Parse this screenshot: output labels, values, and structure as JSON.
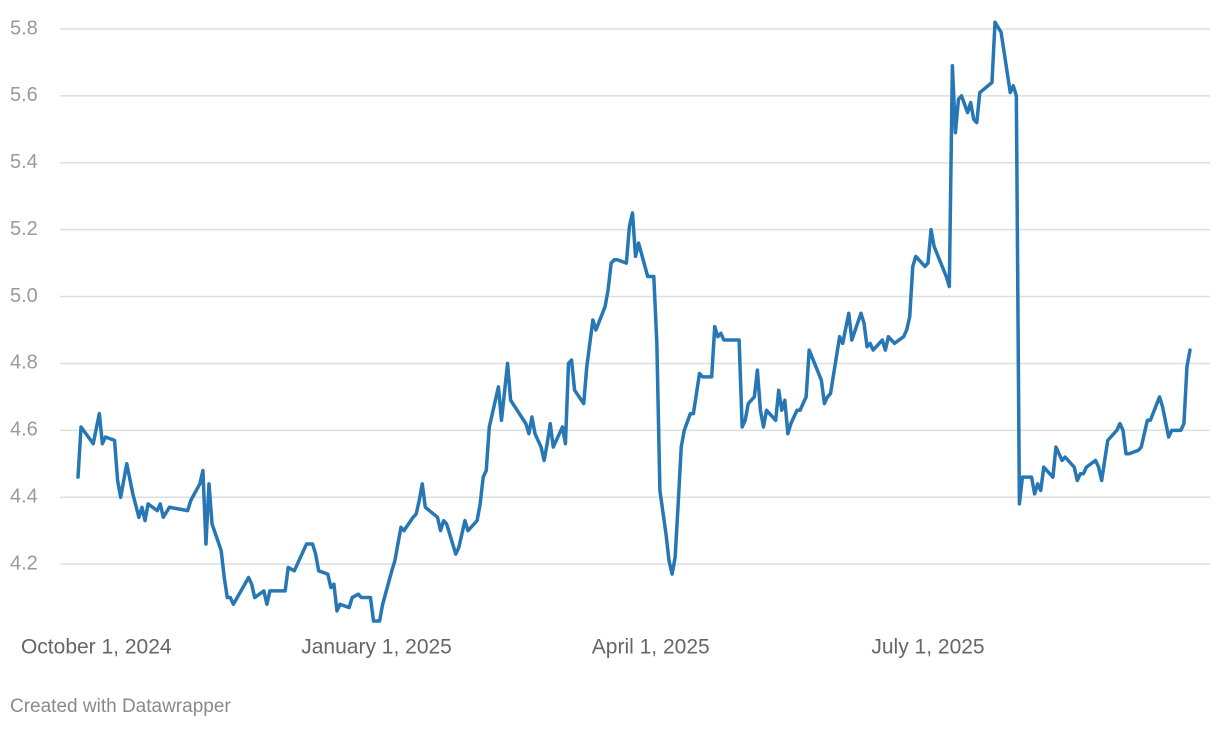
{
  "chart_data": {
    "type": "line",
    "color": "#2677b4",
    "grid": true,
    "footer": "Created with Datawrapper",
    "xlim": [
      "2024-09-25",
      "2025-09-25"
    ],
    "xticks": [
      {
        "value": "2024-10-01",
        "label": "October 1, 2024"
      },
      {
        "value": "2025-01-01",
        "label": "January 1, 2025"
      },
      {
        "value": "2025-04-01",
        "label": "April 1, 2025"
      },
      {
        "value": "2025-07-01",
        "label": "July 1, 2025"
      }
    ],
    "ylim": [
      4,
      5.8
    ],
    "yticks": [
      4.2,
      4.4,
      4.6,
      4.8,
      {
        "value": 5,
        "label": "5.0"
      },
      5.2,
      5.4,
      5.6,
      5.8
    ],
    "x": [
      "2024-09-25",
      "2024-09-26",
      "2024-09-30",
      "2024-10-02",
      "2024-10-03",
      "2024-10-04",
      "2024-10-07",
      "2024-10-08",
      "2024-10-09",
      "2024-10-11",
      "2024-10-13",
      "2024-10-15",
      "2024-10-16",
      "2024-10-17",
      "2024-10-18",
      "2024-10-21",
      "2024-10-22",
      "2024-10-23",
      "2024-10-25",
      "2024-10-31",
      "2024-11-01",
      "2024-11-04",
      "2024-11-05",
      "2024-11-06",
      "2024-11-07",
      "2024-11-08",
      "2024-11-11",
      "2024-11-12",
      "2024-11-13",
      "2024-11-14",
      "2024-11-15",
      "2024-11-20",
      "2024-11-21",
      "2024-11-22",
      "2024-11-25",
      "2024-11-26",
      "2024-11-27",
      "2024-11-29",
      "2024-12-02",
      "2024-12-03",
      "2024-12-05",
      "2024-12-09",
      "2024-12-11",
      "2024-12-12",
      "2024-12-13",
      "2024-12-16",
      "2024-12-17",
      "2024-12-18",
      "2024-12-19",
      "2024-12-20",
      "2024-12-23",
      "2024-12-24",
      "2024-12-26",
      "2024-12-27",
      "2024-12-30",
      "2024-12-31",
      "2025-01-02",
      "2025-01-03",
      "2025-01-06",
      "2025-01-07",
      "2025-01-09",
      "2025-01-10",
      "2025-01-13",
      "2025-01-14",
      "2025-01-15",
      "2025-01-16",
      "2025-01-17",
      "2025-01-21",
      "2025-01-22",
      "2025-01-23",
      "2025-01-24",
      "2025-01-27",
      "2025-01-28",
      "2025-01-30",
      "2025-01-31",
      "2025-02-03",
      "2025-02-04",
      "2025-02-05",
      "2025-02-06",
      "2025-02-07",
      "2025-02-10",
      "2025-02-11",
      "2025-02-13",
      "2025-02-14",
      "2025-02-19",
      "2025-02-20",
      "2025-02-21",
      "2025-02-22",
      "2025-02-24",
      "2025-02-25",
      "2025-02-26",
      "2025-02-27",
      "2025-02-28",
      "2025-03-03",
      "2025-03-04",
      "2025-03-05",
      "2025-03-06",
      "2025-03-07",
      "2025-03-10",
      "2025-03-11",
      "2025-03-13",
      "2025-03-14",
      "2025-03-17",
      "2025-03-18",
      "2025-03-19",
      "2025-03-20",
      "2025-03-21",
      "2025-03-24",
      "2025-03-25",
      "2025-03-26",
      "2025-03-27",
      "2025-03-28",
      "2025-03-31",
      "2025-04-01",
      "2025-04-02",
      "2025-04-03",
      "2025-04-04",
      "2025-04-06",
      "2025-04-07",
      "2025-04-08",
      "2025-04-09",
      "2025-04-10",
      "2025-04-11",
      "2025-04-12",
      "2025-04-14",
      "2025-04-15",
      "2025-04-17",
      "2025-04-18",
      "2025-04-21",
      "2025-04-22",
      "2025-04-23",
      "2025-04-24",
      "2025-04-25",
      "2025-04-29",
      "2025-04-30",
      "2025-05-01",
      "2025-05-02",
      "2025-05-03",
      "2025-05-05",
      "2025-05-06",
      "2025-05-07",
      "2025-05-08",
      "2025-05-09",
      "2025-05-12",
      "2025-05-13",
      "2025-05-14",
      "2025-05-15",
      "2025-05-16",
      "2025-05-17",
      "2025-05-19",
      "2025-05-20",
      "2025-05-22",
      "2025-05-23",
      "2025-05-27",
      "2025-05-28",
      "2025-05-29",
      "2025-05-30",
      "2025-06-02",
      "2025-06-03",
      "2025-06-05",
      "2025-06-06",
      "2025-06-09",
      "2025-06-10",
      "2025-06-11",
      "2025-06-12",
      "2025-06-13",
      "2025-06-16",
      "2025-06-17",
      "2025-06-18",
      "2025-06-20",
      "2025-06-23",
      "2025-06-24",
      "2025-06-25",
      "2025-06-26",
      "2025-06-27",
      "2025-06-30",
      "2025-07-01",
      "2025-07-02",
      "2025-07-03",
      "2025-07-07",
      "2025-07-08",
      "2025-07-09",
      "2025-07-10",
      "2025-07-11",
      "2025-07-12",
      "2025-07-14",
      "2025-07-15",
      "2025-07-16",
      "2025-07-17",
      "2025-07-18",
      "2025-07-22",
      "2025-07-23",
      "2025-07-25",
      "2025-07-28",
      "2025-07-29",
      "2025-07-30",
      "2025-07-31",
      "2025-08-01",
      "2025-08-04",
      "2025-08-05",
      "2025-08-06",
      "2025-08-07",
      "2025-08-08",
      "2025-08-11",
      "2025-08-12",
      "2025-08-14",
      "2025-08-15",
      "2025-08-18",
      "2025-08-19",
      "2025-08-20",
      "2025-08-21",
      "2025-08-22",
      "2025-08-25",
      "2025-08-26",
      "2025-08-27",
      "2025-08-28",
      "2025-08-29",
      "2025-09-01",
      "2025-09-02",
      "2025-09-03",
      "2025-09-04",
      "2025-09-05",
      "2025-09-08",
      "2025-09-09",
      "2025-09-11",
      "2025-09-12",
      "2025-09-15",
      "2025-09-16",
      "2025-09-18",
      "2025-09-19",
      "2025-09-22",
      "2025-09-23",
      "2025-09-24",
      "2025-09-25"
    ],
    "values": [
      4.46,
      4.61,
      4.56,
      4.65,
      4.56,
      4.58,
      4.57,
      4.45,
      4.4,
      4.5,
      4.41,
      4.34,
      4.37,
      4.33,
      4.38,
      4.36,
      4.38,
      4.34,
      4.37,
      4.36,
      4.39,
      4.44,
      4.48,
      4.26,
      4.44,
      4.32,
      4.24,
      4.16,
      4.1,
      4.1,
      4.08,
      4.16,
      4.14,
      4.1,
      4.12,
      4.08,
      4.12,
      4.12,
      4.12,
      4.19,
      4.18,
      4.26,
      4.26,
      4.23,
      4.18,
      4.17,
      4.13,
      4.14,
      4.06,
      4.08,
      4.07,
      4.1,
      4.11,
      4.1,
      4.1,
      4.03,
      4.03,
      4.08,
      4.18,
      4.21,
      4.31,
      4.3,
      4.34,
      4.35,
      4.39,
      4.44,
      4.37,
      4.34,
      4.3,
      4.33,
      4.32,
      4.23,
      4.25,
      4.33,
      4.3,
      4.33,
      4.38,
      4.46,
      4.48,
      4.61,
      4.73,
      4.63,
      4.8,
      4.69,
      4.62,
      4.59,
      4.64,
      4.59,
      4.55,
      4.51,
      4.56,
      4.62,
      4.55,
      4.61,
      4.56,
      4.8,
      4.81,
      4.72,
      4.68,
      4.79,
      4.93,
      4.9,
      4.97,
      5.02,
      5.1,
      5.11,
      5.11,
      5.1,
      5.21,
      5.25,
      5.12,
      5.16,
      5.06,
      5.06,
      5.06,
      4.86,
      4.42,
      4.29,
      4.21,
      4.17,
      4.22,
      4.38,
      4.55,
      4.6,
      4.65,
      4.65,
      4.77,
      4.76,
      4.76,
      4.91,
      4.88,
      4.89,
      4.87,
      4.87,
      4.87,
      4.61,
      4.63,
      4.68,
      4.7,
      4.78,
      4.66,
      4.61,
      4.66,
      4.63,
      4.72,
      4.66,
      4.69,
      4.59,
      4.62,
      4.66,
      4.66,
      4.7,
      4.84,
      4.75,
      4.68,
      4.7,
      4.71,
      4.88,
      4.86,
      4.95,
      4.87,
      4.95,
      4.92,
      4.85,
      4.86,
      4.84,
      4.87,
      4.84,
      4.88,
      4.86,
      4.88,
      4.9,
      4.94,
      5.09,
      5.12,
      5.09,
      5.1,
      5.2,
      5.15,
      5.06,
      5.03,
      5.69,
      5.49,
      5.59,
      5.6,
      5.55,
      5.58,
      5.53,
      5.52,
      5.61,
      5.64,
      5.82,
      5.79,
      5.61,
      5.63,
      5.6,
      4.38,
      4.46,
      4.46,
      4.41,
      4.44,
      4.42,
      4.49,
      4.46,
      4.55,
      4.51,
      4.52,
      4.49,
      4.45,
      4.47,
      4.47,
      4.49,
      4.51,
      4.49,
      4.45,
      4.51,
      4.57,
      4.6,
      4.62,
      4.6,
      4.53,
      4.53,
      4.54,
      4.55,
      4.63,
      4.63,
      4.7,
      4.67,
      4.58,
      4.6,
      4.6,
      4.62,
      4.79,
      4.84
    ]
  }
}
